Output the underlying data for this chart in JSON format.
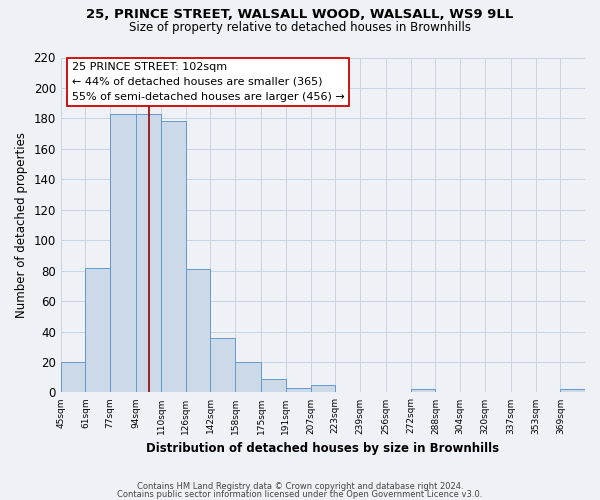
{
  "title1": "25, PRINCE STREET, WALSALL WOOD, WALSALL, WS9 9LL",
  "title2": "Size of property relative to detached houses in Brownhills",
  "xlabel": "Distribution of detached houses by size in Brownhills",
  "ylabel": "Number of detached properties",
  "bin_labels": [
    "45sqm",
    "61sqm",
    "77sqm",
    "94sqm",
    "110sqm",
    "126sqm",
    "142sqm",
    "158sqm",
    "175sqm",
    "191sqm",
    "207sqm",
    "223sqm",
    "239sqm",
    "256sqm",
    "272sqm",
    "288sqm",
    "304sqm",
    "320sqm",
    "337sqm",
    "353sqm",
    "369sqm"
  ],
  "bin_edges": [
    45,
    61,
    77,
    94,
    110,
    126,
    142,
    158,
    175,
    191,
    207,
    223,
    239,
    256,
    272,
    288,
    304,
    320,
    337,
    353,
    369,
    385
  ],
  "counts": [
    20,
    82,
    183,
    183,
    178,
    81,
    36,
    20,
    9,
    3,
    5,
    0,
    0,
    0,
    2,
    0,
    0,
    0,
    0,
    0,
    2
  ],
  "bar_color": "#ccd9e8",
  "bar_edge_color": "#6699cc",
  "property_size": 102,
  "vline_color": "#990000",
  "annotation_text": "25 PRINCE STREET: 102sqm\n← 44% of detached houses are smaller (365)\n55% of semi-detached houses are larger (456) →",
  "annotation_box_color": "#ffffff",
  "annotation_box_edge": "#cc0000",
  "ylim": [
    0,
    220
  ],
  "yticks": [
    0,
    20,
    40,
    60,
    80,
    100,
    120,
    140,
    160,
    180,
    200,
    220
  ],
  "footer_line1": "Contains HM Land Registry data © Crown copyright and database right 2024.",
  "footer_line2": "Contains public sector information licensed under the Open Government Licence v3.0.",
  "background_color": "#eef2f7",
  "grid_color": "#c8d4e0"
}
